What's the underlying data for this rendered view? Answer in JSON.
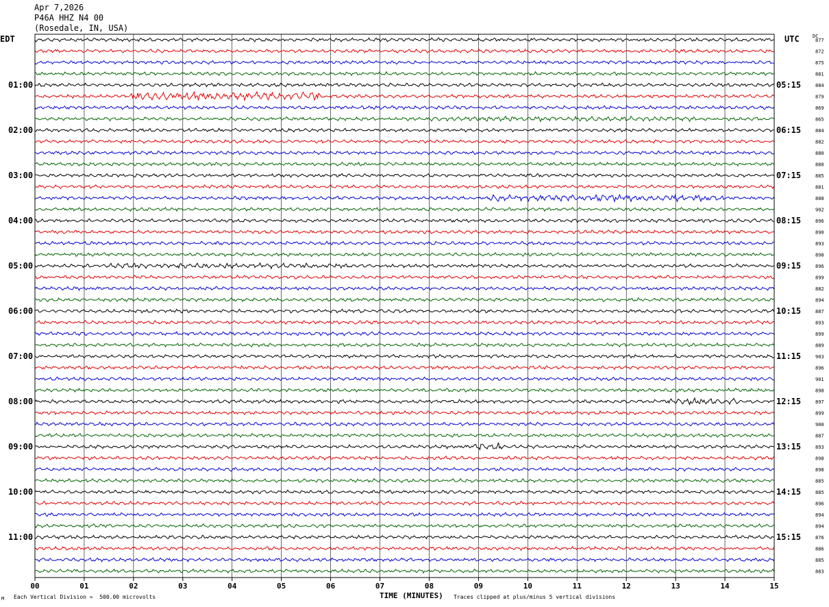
{
  "header": {
    "date": "Apr 7,2026",
    "station": "P46A HHZ N4 00",
    "location": "(Rosedale, IN, USA)"
  },
  "left_tz": "EDT",
  "right_tz": "UTC",
  "dc_label": "DC",
  "corner_mark": "M",
  "footer": {
    "scale": "Each Vertical Division =  500.00 microvolts",
    "clip": "Traces clipped at plus/minus 5 vertical divisions"
  },
  "chart_data": {
    "type": "line",
    "title": "Apr 7,2026 P46A HHZ N4 00 (Rosedale, IN, USA)",
    "xlabel": "TIME (MINUTES)",
    "xlim": [
      0,
      15
    ],
    "x_ticks": [
      "00",
      "01",
      "02",
      "03",
      "04",
      "05",
      "06",
      "07",
      "08",
      "09",
      "10",
      "11",
      "12",
      "13",
      "14",
      "15"
    ],
    "left_hour_labels": [
      "01:00",
      "02:00",
      "03:00",
      "04:00",
      "05:00",
      "06:00",
      "07:00",
      "08:00",
      "09:00",
      "10:00",
      "11:00"
    ],
    "right_hour_labels": [
      "05:15",
      "06:15",
      "07:15",
      "08:15",
      "09:15",
      "10:15",
      "11:15",
      "12:15",
      "13:15",
      "14:15",
      "15:15"
    ],
    "trace_colors": [
      "#000000",
      "#e00000",
      "#0000d0",
      "#006400"
    ],
    "dc_offsets": [
      877,
      872,
      875,
      881,
      884,
      879,
      869,
      865,
      884,
      882,
      880,
      880,
      885,
      881,
      888,
      902,
      896,
      890,
      893,
      898,
      896,
      899,
      882,
      894,
      887,
      893,
      899,
      889,
      903,
      896,
      901,
      898,
      897,
      899,
      900,
      887,
      893,
      898,
      898,
      885,
      885,
      896,
      894,
      894,
      876,
      886,
      885,
      883
    ],
    "active_segments": [
      {
        "trace": 5,
        "from_min": 1.9,
        "to_min": 5.8,
        "amp": 2.6
      },
      {
        "trace": 7,
        "from_min": 8.0,
        "to_min": 13.5,
        "amp": 1.4
      },
      {
        "trace": 14,
        "from_min": 9.2,
        "to_min": 14.0,
        "amp": 2.0
      },
      {
        "trace": 20,
        "from_min": 1.5,
        "to_min": 6.5,
        "amp": 1.5
      },
      {
        "trace": 32,
        "from_min": 12.8,
        "to_min": 14.3,
        "amp": 1.8
      },
      {
        "trace": 36,
        "from_min": 8.9,
        "to_min": 9.6,
        "amp": 2.2
      }
    ]
  }
}
